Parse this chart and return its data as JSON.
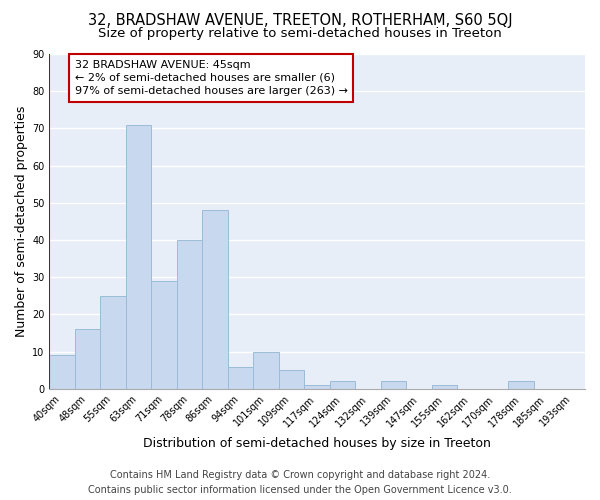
{
  "title": "32, BRADSHAW AVENUE, TREETON, ROTHERHAM, S60 5QJ",
  "subtitle": "Size of property relative to semi-detached houses in Treeton",
  "xlabel": "Distribution of semi-detached houses by size in Treeton",
  "ylabel": "Number of semi-detached properties",
  "footer_line1": "Contains HM Land Registry data © Crown copyright and database right 2024.",
  "footer_line2": "Contains public sector information licensed under the Open Government Licence v3.0.",
  "bin_labels": [
    "40sqm",
    "48sqm",
    "55sqm",
    "63sqm",
    "71sqm",
    "78sqm",
    "86sqm",
    "94sqm",
    "101sqm",
    "109sqm",
    "117sqm",
    "124sqm",
    "132sqm",
    "139sqm",
    "147sqm",
    "155sqm",
    "162sqm",
    "170sqm",
    "178sqm",
    "185sqm",
    "193sqm"
  ],
  "bar_heights": [
    9,
    16,
    25,
    71,
    29,
    40,
    48,
    6,
    10,
    5,
    1,
    2,
    0,
    2,
    0,
    1,
    0,
    0,
    2,
    0,
    0
  ],
  "bar_color": "#c8d8ee",
  "bar_edge_color": "#9bbcd8",
  "highlight_color": "#c00000",
  "annotation_title": "32 BRADSHAW AVENUE: 45sqm",
  "annotation_line1": "← 2% of semi-detached houses are smaller (6)",
  "annotation_line2": "97% of semi-detached houses are larger (263) →",
  "annotation_box_color": "#ffffff",
  "annotation_box_edge": "#c00000",
  "ylim": [
    0,
    90
  ],
  "yticks": [
    0,
    10,
    20,
    30,
    40,
    50,
    60,
    70,
    80,
    90
  ],
  "fig_bg_color": "#ffffff",
  "axes_bg_color": "#e8eef8",
  "grid_color": "#ffffff",
  "title_fontsize": 10.5,
  "subtitle_fontsize": 9.5,
  "axis_label_fontsize": 9,
  "tick_fontsize": 7,
  "annotation_fontsize": 8,
  "footer_fontsize": 7
}
